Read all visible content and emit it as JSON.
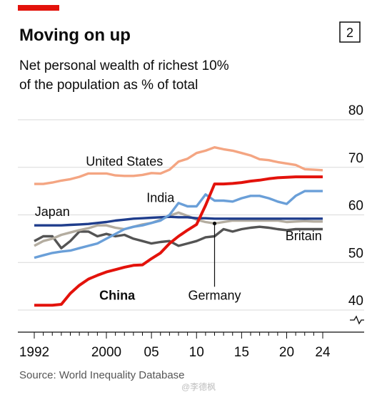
{
  "header": {
    "title": "Moving on up",
    "chart_number": "2",
    "subtitle_lines": [
      "Net personal wealth of richest 10%",
      "of the population as % of total"
    ],
    "accent_color": "#e3120b"
  },
  "source": "Source: World Inequality Database",
  "watermark": "@李德枫",
  "chart_data": {
    "type": "line",
    "title": "Moving on up",
    "subtitle": "Net personal wealth of richest 10% of the population as % of total",
    "xlabel": "",
    "ylabel": "",
    "xlim": [
      1992,
      2024
    ],
    "ylim": [
      40,
      80
    ],
    "y_axis_position": "right",
    "y_axis_break": true,
    "grid": "horizontal",
    "legend": "direct labels on lines",
    "x_ticks": [
      1992,
      2000,
      2005,
      2010,
      2015,
      2020,
      2024
    ],
    "x_tick_labels": [
      "1992",
      "2000",
      "05",
      "10",
      "15",
      "20",
      "24"
    ],
    "y_ticks": [
      40,
      50,
      60,
      70,
      80
    ],
    "y_tick_labels": [
      "40",
      "50",
      "60",
      "70",
      "80"
    ],
    "series": [
      {
        "name": "United States",
        "color": "#f4a582",
        "x": [
          1992,
          1993,
          1994,
          1995,
          1996,
          1997,
          1998,
          1999,
          2000,
          2001,
          2002,
          2003,
          2004,
          2005,
          2006,
          2007,
          2008,
          2009,
          2010,
          2011,
          2012,
          2013,
          2014,
          2015,
          2016,
          2017,
          2018,
          2019,
          2020,
          2021,
          2022,
          2023,
          2024
        ],
        "values": [
          66.5,
          66.5,
          66.8,
          67.2,
          67.5,
          68.0,
          68.7,
          68.7,
          68.7,
          68.3,
          68.2,
          68.2,
          68.4,
          68.8,
          68.7,
          69.5,
          71.2,
          71.8,
          73.0,
          73.5,
          74.2,
          73.8,
          73.5,
          73.0,
          72.5,
          71.7,
          71.5,
          71.1,
          70.8,
          70.5,
          69.6,
          69.5,
          69.4
        ]
      },
      {
        "name": "China",
        "color": "#e3120b",
        "x": [
          1992,
          1993,
          1994,
          1995,
          1996,
          1997,
          1998,
          1999,
          2000,
          2001,
          2002,
          2003,
          2004,
          2005,
          2006,
          2007,
          2008,
          2009,
          2010,
          2011,
          2012,
          2013,
          2014,
          2015,
          2016,
          2017,
          2018,
          2019,
          2020,
          2021,
          2022,
          2023,
          2024
        ],
        "values": [
          41.0,
          41.0,
          41.0,
          41.2,
          43.5,
          45.2,
          46.5,
          47.3,
          48.0,
          48.5,
          49.0,
          49.4,
          49.5,
          50.8,
          52.0,
          54.0,
          55.5,
          56.8,
          58.0,
          62.0,
          66.5,
          66.5,
          66.6,
          66.8,
          67.1,
          67.3,
          67.6,
          67.8,
          67.9,
          68.0,
          68.0,
          68.0,
          68.0
        ]
      },
      {
        "name": "India",
        "color": "#6a9fd8",
        "x": [
          1992,
          1993,
          1994,
          1995,
          1996,
          1997,
          1998,
          1999,
          2000,
          2001,
          2002,
          2003,
          2004,
          2005,
          2006,
          2007,
          2008,
          2009,
          2010,
          2011,
          2012,
          2013,
          2014,
          2015,
          2016,
          2017,
          2018,
          2019,
          2020,
          2021,
          2022,
          2023,
          2024
        ],
        "values": [
          51.0,
          51.5,
          52.0,
          52.3,
          52.5,
          53.0,
          53.5,
          54.0,
          55.0,
          56.0,
          57.0,
          57.5,
          57.8,
          58.3,
          58.8,
          60.0,
          62.5,
          61.8,
          61.8,
          64.3,
          63.0,
          63.0,
          62.8,
          63.5,
          64.0,
          64.0,
          63.5,
          62.8,
          62.3,
          64.0,
          65.0,
          65.0,
          65.0
        ]
      },
      {
        "name": "Japan",
        "color": "#1f3d8c",
        "x": [
          1992,
          1993,
          1994,
          1995,
          1996,
          1997,
          1998,
          1999,
          2000,
          2001,
          2002,
          2003,
          2004,
          2005,
          2006,
          2007,
          2008,
          2009,
          2010,
          2011,
          2012,
          2013,
          2014,
          2015,
          2016,
          2017,
          2018,
          2019,
          2020,
          2021,
          2022,
          2023,
          2024
        ],
        "values": [
          57.8,
          57.8,
          57.8,
          57.8,
          57.9,
          58.0,
          58.1,
          58.3,
          58.5,
          58.8,
          59.0,
          59.2,
          59.3,
          59.4,
          59.5,
          59.6,
          59.5,
          59.5,
          59.3,
          59.3,
          59.2,
          59.2,
          59.2,
          59.2,
          59.2,
          59.2,
          59.2,
          59.2,
          59.2,
          59.2,
          59.2,
          59.2,
          59.2
        ]
      },
      {
        "name": "Germany",
        "color": "#b4ada0",
        "x": [
          1992,
          1993,
          1994,
          1995,
          1996,
          1997,
          1998,
          1999,
          2000,
          2001,
          2002,
          2003,
          2004,
          2005,
          2006,
          2007,
          2008,
          2009,
          2010,
          2011,
          2012,
          2013,
          2014,
          2015,
          2016,
          2017,
          2018,
          2019,
          2020,
          2021,
          2022,
          2023,
          2024
        ],
        "values": [
          53.5,
          54.5,
          55.0,
          55.8,
          56.3,
          56.8,
          57.2,
          57.8,
          57.8,
          57.3,
          57.0,
          57.5,
          58.0,
          58.3,
          59.0,
          59.8,
          60.5,
          59.8,
          59.0,
          58.5,
          58.2,
          58.5,
          58.8,
          58.8,
          58.8,
          58.8,
          58.8,
          58.8,
          58.5,
          58.6,
          58.7,
          58.6,
          58.6
        ]
      },
      {
        "name": "Britain",
        "color": "#545454",
        "x": [
          1992,
          1993,
          1994,
          1995,
          1996,
          1997,
          1998,
          1999,
          2000,
          2001,
          2002,
          2003,
          2004,
          2005,
          2006,
          2007,
          2008,
          2009,
          2010,
          2011,
          2012,
          2013,
          2014,
          2015,
          2016,
          2017,
          2018,
          2019,
          2020,
          2021,
          2022,
          2023,
          2024
        ],
        "values": [
          54.5,
          55.5,
          55.5,
          53.0,
          54.5,
          56.5,
          56.5,
          55.5,
          56.0,
          55.5,
          55.8,
          55.0,
          54.5,
          54.0,
          54.3,
          54.5,
          53.5,
          54.0,
          54.5,
          55.3,
          55.5,
          57.0,
          56.5,
          57.0,
          57.3,
          57.5,
          57.3,
          57.0,
          56.8,
          57.0,
          57.0,
          57.0,
          57.0
        ]
      }
    ],
    "series_label_positions": [
      {
        "name": "United States",
        "year": 2002,
        "value": 70.3,
        "anchor": "middle",
        "bold": false
      },
      {
        "name": "India",
        "year": 2006,
        "value": 62.7,
        "anchor": "middle",
        "bold": false
      },
      {
        "name": "Japan",
        "year": 1994.0,
        "value": 59.8,
        "anchor": "middle",
        "bold": false
      },
      {
        "name": "Britain",
        "year": 2023.9,
        "value": 54.7,
        "anchor": "end",
        "bold": false
      },
      {
        "name": "China",
        "year": 2001.2,
        "value": 42.2,
        "anchor": "middle",
        "bold": true
      },
      {
        "name": "Germany",
        "year": 2012,
        "value": 42.2,
        "anchor": "middle",
        "bold": false
      }
    ],
    "annotations": [
      {
        "type": "pointer",
        "target_series": "Germany",
        "year": 2012,
        "value": 58.2
      }
    ]
  }
}
